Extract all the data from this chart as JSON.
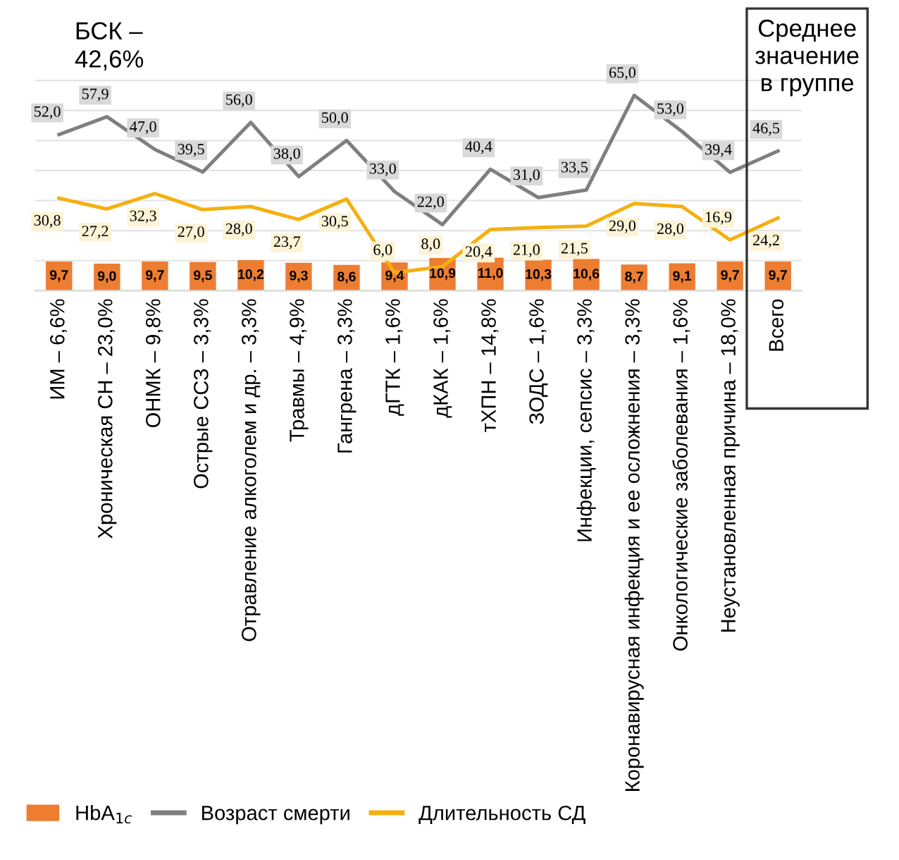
{
  "chart_data": {
    "type": "bar",
    "categories": [
      "ИМ – 6,6%",
      "Хроническая СН – 23,0%",
      "ОНМК – 9,8%",
      "Острые ССЗ – 3,3%",
      "Отравление алкоголем и др. – 3,3%",
      "Травмы – 4,9%",
      "Гангрена – 3,3%",
      "дГТК – 1,6%",
      "дКАК – 1,6%",
      "тХПН – 14,8%",
      "ЗОДС – 1,6%",
      "Инфекции, сепсис – 3,3%",
      "Коронавирусная инфекция и ее осложнения – 3,3%",
      "Онкологические заболевания – 1,6%",
      "Неустановленная причина – 18,0%",
      "Всего"
    ],
    "series": [
      {
        "name": "HbA$_{1c}$",
        "color": "#ed7d31",
        "values": [
          9.7,
          9.0,
          9.7,
          9.5,
          10.2,
          9.3,
          8.6,
          9.4,
          10.9,
          11.0,
          10.3,
          10.6,
          8.7,
          9.1,
          9.7,
          9.7
        ],
        "value_labels": [
          "9,7",
          "9,0",
          "9,7",
          "9,5",
          "10,2",
          "9,3",
          "8,6",
          "9,4",
          "10,9",
          "11,0",
          "10,3",
          "10,6",
          "8,7",
          "9,1",
          "9,7",
          "9,7"
        ]
      },
      {
        "name": "Возраст смерти",
        "type": "line",
        "color": "#7f7f7f",
        "values": [
          52.0,
          57.9,
          47.0,
          39.5,
          56.0,
          38.0,
          50.0,
          33.0,
          22.0,
          40.4,
          31.0,
          33.5,
          65.0,
          53.0,
          39.4,
          46.5
        ],
        "value_labels": [
          "52,0",
          "57,9",
          "47,0",
          "39,5",
          "56,0",
          "38,0",
          "50,0",
          "33,0",
          "22,0",
          "40,4",
          "31,0",
          "33,5",
          "65,0",
          "53,0",
          "39,4",
          "46,5"
        ]
      },
      {
        "name": "Длительность СД",
        "type": "line",
        "color": "#f5b00f",
        "values": [
          30.8,
          27.2,
          32.3,
          27.0,
          28.0,
          23.7,
          30.5,
          6.0,
          8.0,
          20.4,
          21.0,
          21.5,
          29.0,
          28.0,
          16.9,
          24.2
        ],
        "value_labels": [
          "30,8",
          "27,2",
          "32,3",
          "27,0",
          "28,0",
          "23,7",
          "30,5",
          "6,0",
          "8,0",
          "20,4",
          "21,0",
          "21,5",
          "29,0",
          "28,0",
          "16,9",
          "24,2"
        ]
      }
    ],
    "ylim": [
      0,
      75
    ],
    "yticks": [
      {
        "value": 0,
        "label": null
      },
      {
        "value": 10,
        "label": null
      },
      {
        "value": 20,
        "label": null
      },
      {
        "value": 30,
        "label": null
      },
      {
        "value": 40,
        "label": null
      },
      {
        "value": 50,
        "label": null
      },
      {
        "value": 60,
        "label": null
      },
      {
        "value": 70,
        "label": null
      }
    ],
    "tick_labels": "x",
    "grid": "y",
    "legend": "bottom left",
    "marker": "none",
    "line_style": "solid",
    "annotations": [
      "БСК –\n42,6%",
      "Среднее\nзначение\nв группе"
    ]
  }
}
